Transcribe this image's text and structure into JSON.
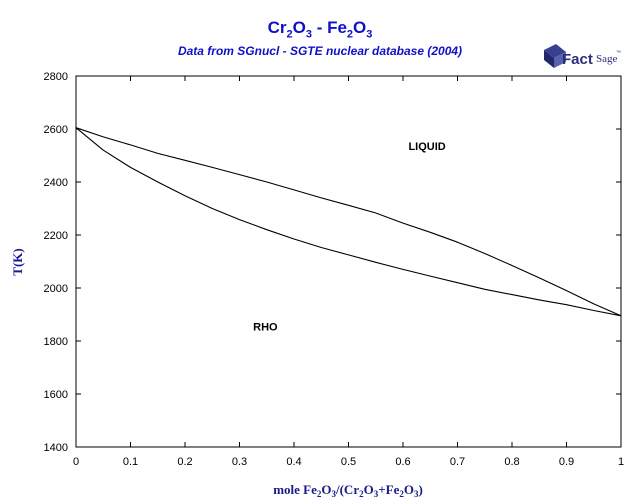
{
  "chart_data": {
    "type": "line",
    "title": {
      "a": "Cr",
      "a_sub": "2",
      "b": "O",
      "b_sub": "3",
      "sep": " - ",
      "c": "Fe",
      "c_sub": "2",
      "d": "O",
      "d_sub": "3"
    },
    "subtitle": "Data from SGnucl - SGTE nuclear database (2004)",
    "logo_text": {
      "main": "Fact",
      "secondary": "Sage",
      "mark": "™"
    },
    "xlabel": {
      "p1": "mole Fe",
      "s1": "2",
      "p2": "O",
      "s2": "3",
      "p3": "/(Cr",
      "s3": "2",
      "p4": "O",
      "s4": "3",
      "p5": "+Fe",
      "s5": "2",
      "p6": "O",
      "s6": "3",
      "p7": ")"
    },
    "ylabel": "T(K)",
    "xlim": [
      0,
      1
    ],
    "ylim": [
      1400,
      2800
    ],
    "xticks": [
      0,
      0.1,
      0.2,
      0.3,
      0.4,
      0.5,
      0.6,
      0.7,
      0.8,
      0.9,
      1
    ],
    "xtick_labels": [
      "0",
      "0.1",
      "0.2",
      "0.3",
      "0.4",
      "0.5",
      "0.6",
      "0.7",
      "0.8",
      "0.9",
      "1"
    ],
    "yticks": [
      1400,
      1600,
      1800,
      2000,
      2200,
      2400,
      2600,
      2800
    ],
    "ytick_labels": [
      "1400",
      "1600",
      "1800",
      "2000",
      "2200",
      "2400",
      "2600",
      "2800"
    ],
    "series": [
      {
        "id": "liquidus",
        "x": [
          0,
          0.05,
          0.1,
          0.15,
          0.2,
          0.25,
          0.3,
          0.35,
          0.4,
          0.45,
          0.5,
          0.55,
          0.6,
          0.65,
          0.7,
          0.75,
          0.8,
          0.85,
          0.9,
          0.95,
          1
        ],
        "y": [
          2605,
          2570,
          2540,
          2508,
          2482,
          2455,
          2428,
          2400,
          2370,
          2340,
          2312,
          2283,
          2245,
          2210,
          2173,
          2130,
          2085,
          2038,
          1990,
          1940,
          1895
        ]
      },
      {
        "id": "solidus",
        "x": [
          0,
          0.05,
          0.1,
          0.15,
          0.2,
          0.25,
          0.3,
          0.35,
          0.4,
          0.45,
          0.5,
          0.55,
          0.6,
          0.65,
          0.7,
          0.75,
          0.8,
          0.85,
          0.9,
          0.95,
          1
        ],
        "y": [
          2605,
          2520,
          2455,
          2400,
          2348,
          2300,
          2258,
          2220,
          2185,
          2153,
          2125,
          2097,
          2070,
          2045,
          2020,
          1995,
          1975,
          1955,
          1937,
          1915,
          1895
        ]
      }
    ],
    "annotations": [
      {
        "text": "LIQUID",
        "x": 0.61,
        "y": 2520
      },
      {
        "text": "RHO",
        "x": 0.325,
        "y": 1840
      }
    ],
    "grid": false,
    "line_color": "#000000",
    "title_color": "#1010c8"
  }
}
